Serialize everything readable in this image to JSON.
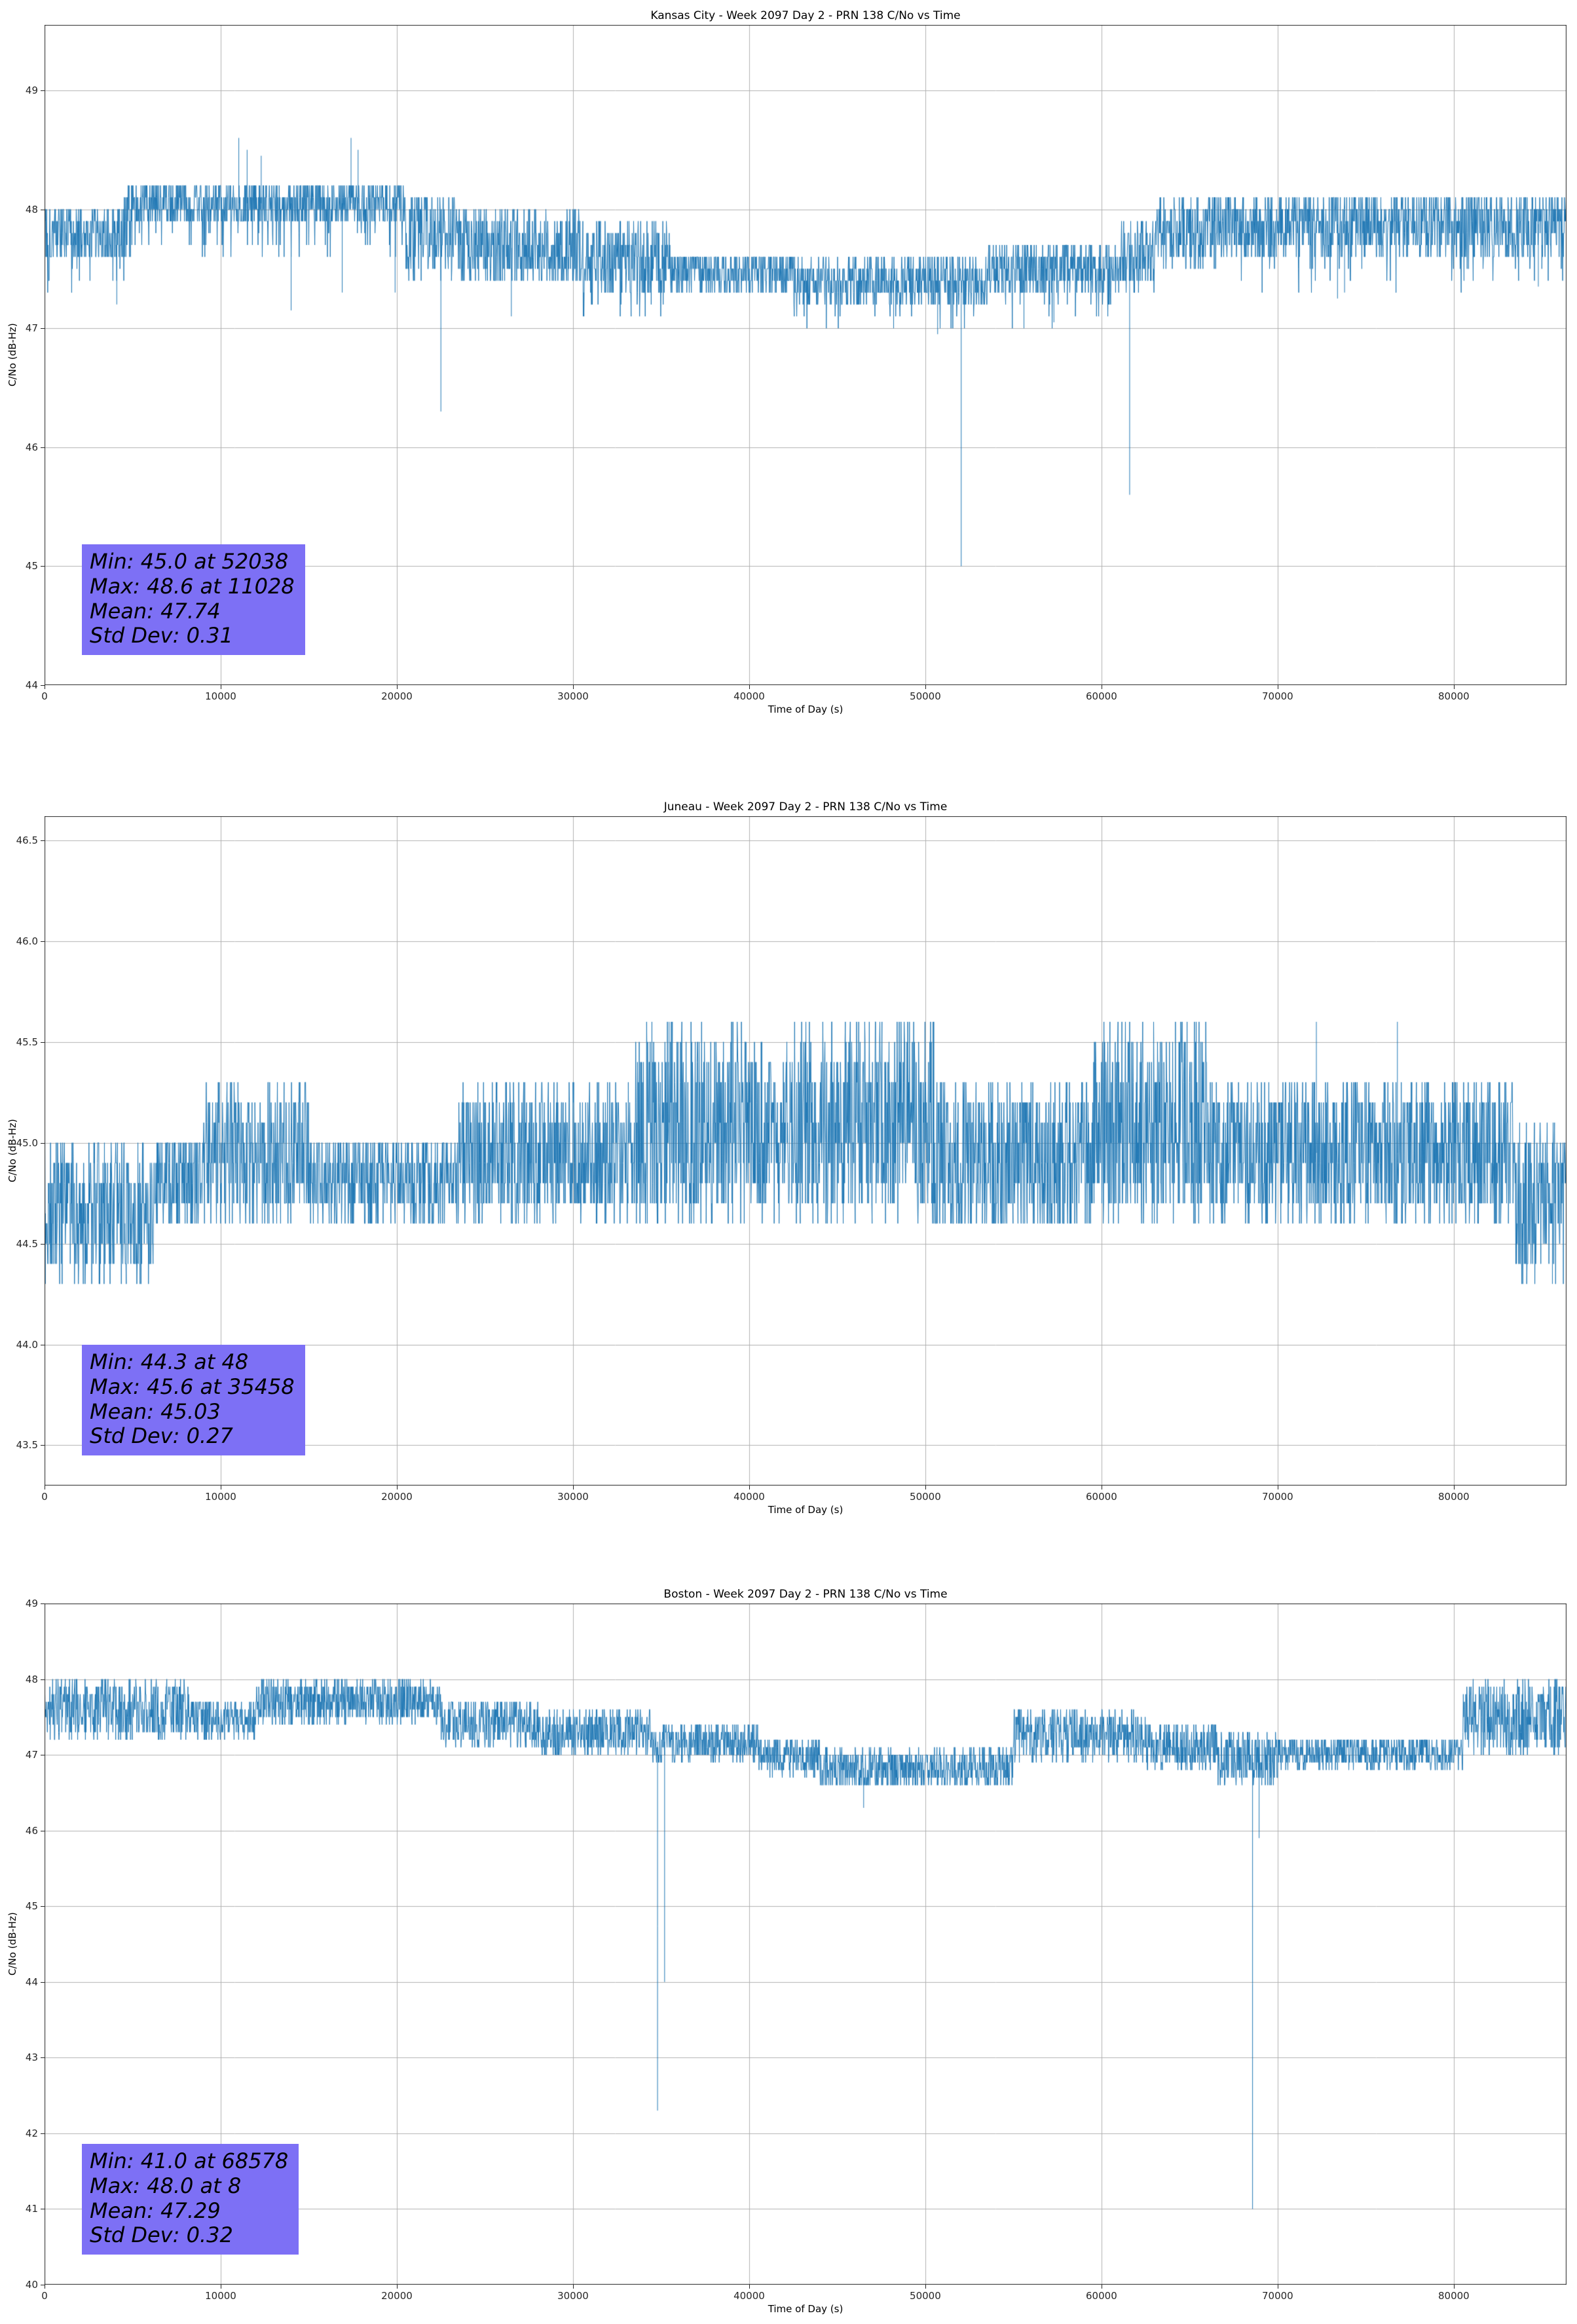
{
  "figure": {
    "background": "#ffffff",
    "line_color": "#1f77b4",
    "grid_color": "#b0b0b0",
    "spine_color": "#262626",
    "stats_box_color": "#7d70f5"
  },
  "chart_data": [
    {
      "type": "line",
      "title": "Kansas City - Week 2097 Day 2 - PRN 138 C/No vs Time",
      "xlabel": "Time of Day (s)",
      "ylabel": "C/No (dB-Hz)",
      "xlim": [
        0,
        86400
      ],
      "ylim": [
        44.0,
        49.55
      ],
      "xticks": [
        0,
        10000,
        20000,
        30000,
        40000,
        50000,
        60000,
        70000,
        80000
      ],
      "xtick_labels": [
        "0",
        "10000",
        "20000",
        "30000",
        "40000",
        "50000",
        "60000",
        "70000",
        "80000"
      ],
      "yticks": [
        44,
        45,
        46,
        47,
        48,
        49
      ],
      "ytick_labels": [
        "44",
        "45",
        "46",
        "47",
        "48",
        "49"
      ],
      "grid": true,
      "seed": 101,
      "sample_interval_s": 20,
      "quantization_db": 0.1,
      "segments": [
        {
          "t0": 0,
          "t1": 4500,
          "lo": 47.55,
          "hi": 48.05,
          "out_p": 0.06,
          "out_lo": 47.3
        },
        {
          "t0": 4500,
          "t1": 20500,
          "lo": 47.85,
          "hi": 48.25,
          "out_p": 0.08,
          "out_lo": 47.55
        },
        {
          "t0": 20500,
          "t1": 23500,
          "lo": 47.4,
          "hi": 48.15
        },
        {
          "t0": 23500,
          "t1": 30500,
          "lo": 47.35,
          "hi": 48.0
        },
        {
          "t0": 30500,
          "t1": 35500,
          "lo": 47.3,
          "hi": 47.9,
          "out_p": 0.08,
          "out_lo": 47.1
        },
        {
          "t0": 35500,
          "t1": 42500,
          "lo": 47.3,
          "hi": 47.65
        },
        {
          "t0": 42500,
          "t1": 53500,
          "lo": 47.2,
          "hi": 47.6,
          "out_p": 0.06,
          "out_lo": 47.0
        },
        {
          "t0": 53500,
          "t1": 61000,
          "lo": 47.3,
          "hi": 47.7,
          "out_p": 0.05,
          "out_lo": 47.0
        },
        {
          "t0": 61000,
          "t1": 63000,
          "lo": 47.3,
          "hi": 47.95
        },
        {
          "t0": 63000,
          "t1": 66500,
          "lo": 47.5,
          "hi": 48.1
        },
        {
          "t0": 66500,
          "t1": 86400,
          "lo": 47.6,
          "hi": 48.15,
          "out_p": 0.04,
          "out_lo": 47.3
        }
      ],
      "spikes": [
        {
          "t": 4100,
          "v": 47.2
        },
        {
          "t": 11028,
          "v": 48.6
        },
        {
          "t": 11500,
          "v": 48.5
        },
        {
          "t": 12300,
          "v": 48.45
        },
        {
          "t": 14000,
          "v": 47.15
        },
        {
          "t": 16900,
          "v": 47.3
        },
        {
          "t": 17400,
          "v": 48.6
        },
        {
          "t": 17800,
          "v": 48.5
        },
        {
          "t": 19900,
          "v": 47.3
        },
        {
          "t": 22500,
          "v": 46.3
        },
        {
          "t": 26500,
          "v": 47.1
        },
        {
          "t": 48200,
          "v": 47.0
        },
        {
          "t": 50700,
          "v": 46.95
        },
        {
          "t": 52038,
          "v": 45.0
        },
        {
          "t": 55600,
          "v": 47.0
        },
        {
          "t": 57300,
          "v": 47.05
        },
        {
          "t": 61600,
          "v": 45.6
        },
        {
          "t": 73400,
          "v": 47.25
        },
        {
          "t": 73800,
          "v": 47.3
        },
        {
          "t": 84800,
          "v": 47.35
        }
      ],
      "stats": {
        "min": 45.0,
        "min_time_s": 52038,
        "max": 48.6,
        "max_time_s": 11028,
        "mean": 47.74,
        "std_dev": 0.31
      },
      "stats_lines": [
        "Min: 45.0 at 52038",
        "Max: 48.6 at 11028",
        "Mean: 47.74",
        "Std Dev: 0.31"
      ]
    },
    {
      "type": "line",
      "title": "Juneau - Week 2097 Day 2 - PRN 138 C/No vs Time",
      "xlabel": "Time of Day (s)",
      "ylabel": "C/No (dB-Hz)",
      "xlim": [
        0,
        86400
      ],
      "ylim": [
        43.3,
        46.62
      ],
      "xticks": [
        0,
        10000,
        20000,
        30000,
        40000,
        50000,
        60000,
        70000,
        80000
      ],
      "xtick_labels": [
        "0",
        "10000",
        "20000",
        "30000",
        "40000",
        "50000",
        "60000",
        "70000",
        "80000"
      ],
      "yticks": [
        43.5,
        44.0,
        44.5,
        45.0,
        45.5,
        46.0,
        46.5
      ],
      "ytick_labels": [
        "43.5",
        "44.0",
        "44.5",
        "45.0",
        "45.5",
        "46.0",
        "46.5"
      ],
      "grid": true,
      "seed": 202,
      "sample_interval_s": 20,
      "quantization_db": 0.1,
      "segments": [
        {
          "t0": 0,
          "t1": 6200,
          "lo": 44.3,
          "hi": 45.0
        },
        {
          "t0": 6200,
          "t1": 9000,
          "lo": 44.6,
          "hi": 45.05
        },
        {
          "t0": 9000,
          "t1": 15000,
          "lo": 44.6,
          "hi": 45.3
        },
        {
          "t0": 15000,
          "t1": 23500,
          "lo": 44.6,
          "hi": 45.05
        },
        {
          "t0": 23500,
          "t1": 33500,
          "lo": 44.6,
          "hi": 45.3
        },
        {
          "t0": 33500,
          "t1": 50500,
          "lo": 44.6,
          "hi": 45.6
        },
        {
          "t0": 50500,
          "t1": 59500,
          "lo": 44.55,
          "hi": 45.3
        },
        {
          "t0": 59500,
          "t1": 66000,
          "lo": 44.6,
          "hi": 45.6
        },
        {
          "t0": 66000,
          "t1": 83500,
          "lo": 44.6,
          "hi": 45.3
        },
        {
          "t0": 83500,
          "t1": 86400,
          "lo": 44.3,
          "hi": 45.1
        }
      ],
      "spikes": [
        {
          "t": 48,
          "v": 44.3
        },
        {
          "t": 35458,
          "v": 45.6
        },
        {
          "t": 72200,
          "v": 45.6
        },
        {
          "t": 76800,
          "v": 45.6
        },
        {
          "t": 85600,
          "v": 44.3
        }
      ],
      "stats": {
        "min": 44.3,
        "min_time_s": 48,
        "max": 45.6,
        "max_time_s": 35458,
        "mean": 45.03,
        "std_dev": 0.27
      },
      "stats_lines": [
        "Min: 44.3 at 48",
        "Max: 45.6 at 35458",
        "Mean: 45.03",
        "Std Dev: 0.27"
      ]
    },
    {
      "type": "line",
      "title": "Boston - Week 2097 Day 2 - PRN 138 C/No vs Time",
      "xlabel": "Time of Day (s)",
      "ylabel": "C/No (dB-Hz)",
      "xlim": [
        0,
        86400
      ],
      "ylim": [
        40.0,
        49.0
      ],
      "xticks": [
        0,
        10000,
        20000,
        30000,
        40000,
        50000,
        60000,
        70000,
        80000
      ],
      "xtick_labels": [
        "0",
        "10000",
        "20000",
        "30000",
        "40000",
        "50000",
        "60000",
        "70000",
        "80000"
      ],
      "yticks": [
        40,
        41,
        42,
        43,
        44,
        45,
        46,
        47,
        48,
        49
      ],
      "ytick_labels": [
        "40",
        "41",
        "42",
        "43",
        "44",
        "45",
        "46",
        "47",
        "48",
        "49"
      ],
      "grid": true,
      "seed": 303,
      "sample_interval_s": 20,
      "quantization_db": 0.1,
      "segments": [
        {
          "t0": 0,
          "t1": 8200,
          "lo": 47.2,
          "hi": 48.0
        },
        {
          "t0": 8200,
          "t1": 12000,
          "lo": 47.2,
          "hi": 47.75
        },
        {
          "t0": 12000,
          "t1": 22500,
          "lo": 47.4,
          "hi": 48.0
        },
        {
          "t0": 22500,
          "t1": 28000,
          "lo": 47.1,
          "hi": 47.75
        },
        {
          "t0": 28000,
          "t1": 34500,
          "lo": 47.0,
          "hi": 47.6
        },
        {
          "t0": 34500,
          "t1": 40500,
          "lo": 46.9,
          "hi": 47.45
        },
        {
          "t0": 40500,
          "t1": 44000,
          "lo": 46.7,
          "hi": 47.25
        },
        {
          "t0": 44000,
          "t1": 55000,
          "lo": 46.55,
          "hi": 47.1
        },
        {
          "t0": 55000,
          "t1": 62500,
          "lo": 46.9,
          "hi": 47.6
        },
        {
          "t0": 62500,
          "t1": 66500,
          "lo": 46.8,
          "hi": 47.4
        },
        {
          "t0": 66500,
          "t1": 70000,
          "lo": 46.6,
          "hi": 47.3
        },
        {
          "t0": 70000,
          "t1": 80500,
          "lo": 46.8,
          "hi": 47.25
        },
        {
          "t0": 80500,
          "t1": 86400,
          "lo": 47.0,
          "hi": 48.0
        }
      ],
      "spikes": [
        {
          "t": 8,
          "v": 48.0
        },
        {
          "t": 34800,
          "v": 42.3
        },
        {
          "t": 35200,
          "v": 44.0
        },
        {
          "t": 46500,
          "v": 46.3
        },
        {
          "t": 68578,
          "v": 41.0
        },
        {
          "t": 68950,
          "v": 45.9
        }
      ],
      "stats": {
        "min": 41.0,
        "min_time_s": 68578,
        "max": 48.0,
        "max_time_s": 8,
        "mean": 47.29,
        "std_dev": 0.32
      },
      "stats_lines": [
        "Min: 41.0 at 68578",
        "Max: 48.0 at 8",
        "Mean: 47.29",
        "Std Dev: 0.32"
      ]
    }
  ]
}
